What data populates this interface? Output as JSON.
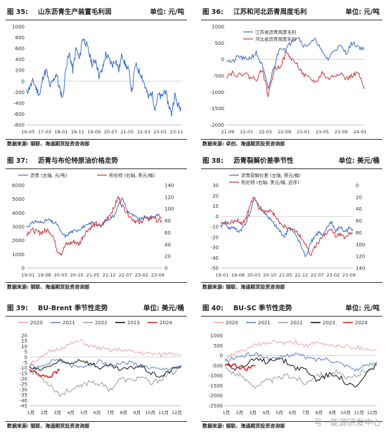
{
  "panels": [
    {
      "id": "p35",
      "fig": "图 35:",
      "title": "山东沥青生产装置毛利润",
      "unit": "单位: 元/吨",
      "source": "数据来源: 钢联、海通期货投资咨询部",
      "chart_data": {
        "type": "line",
        "x_ticks": [
          "16-05",
          "17-03",
          "18-01",
          "18-11",
          "19-09",
          "20-07",
          "21-05",
          "22-03",
          "23-01",
          "23-11"
        ],
        "y_ticks": [
          1000,
          800,
          600,
          400,
          200,
          0,
          -200,
          -400,
          -600,
          -800
        ],
        "ylim": [
          -800,
          1000
        ],
        "legend": [],
        "series": [
          {
            "color": "#3a6fc4",
            "axis": "left",
            "seed": 11,
            "vol": 0.04,
            "values": [
              -200,
              -100,
              0,
              -150,
              -250,
              100,
              200,
              -100,
              0,
              150,
              -150,
              -300,
              300,
              500,
              200,
              600,
              400,
              800,
              700,
              500,
              300,
              400,
              100,
              200,
              500,
              400,
              300,
              400,
              200,
              500,
              300,
              200,
              -200,
              300,
              200,
              100,
              -100,
              -300,
              -200,
              -500,
              -250,
              -300,
              -150,
              -400,
              -600,
              -250,
              -450,
              -500
            ]
          }
        ]
      }
    },
    {
      "id": "p36",
      "fig": "图 36:",
      "title": "江苏和河北沥青周度毛利",
      "unit": "单位: 元/吨",
      "source": "数据来源: 卓创、海通期货投资咨询部",
      "chart_data": {
        "type": "line",
        "x_ticks": [
          "21-09",
          "22-01",
          "22-05",
          "22-09",
          "23-01",
          "23-05",
          "23-09",
          "24-01"
        ],
        "y_ticks": [
          1000,
          500,
          0,
          -500,
          -1000,
          -1500,
          -2000
        ],
        "ylim": [
          -2000,
          1000
        ],
        "legend": [
          "江苏省沥青周度毛利",
          "河北省沥青周度毛利"
        ],
        "series": [
          {
            "name": "江苏省沥青周度毛利",
            "color": "#3a6fc4",
            "axis": "left",
            "seed": 21,
            "vol": 0.025,
            "values": [
              0,
              -100,
              100,
              0,
              50,
              200,
              -200,
              -900,
              -200,
              400,
              300,
              600,
              700,
              400,
              500,
              600,
              200,
              0,
              300,
              400,
              200,
              500,
              400,
              300
            ]
          },
          {
            "name": "河北省沥青周度毛利",
            "color": "#c8383c",
            "axis": "left",
            "seed": 22,
            "vol": 0.025,
            "values": [
              -500,
              -400,
              -500,
              -400,
              -550,
              -600,
              -300,
              -1100,
              -300,
              -200,
              200,
              0,
              -200,
              -500,
              -600,
              -700,
              -400,
              -600,
              -500,
              -400,
              -600,
              -500,
              -400,
              -900
            ]
          }
        ]
      }
    },
    {
      "id": "p37",
      "fig": "图 37:",
      "title": "沥青与布伦特原油价格走势",
      "unit": "",
      "source": "数据来源: 钢联、海通期货投资咨询部",
      "chart_data": {
        "type": "line",
        "x_ticks": [
          "19-01",
          "19-08",
          "20-03",
          "20-10",
          "21-05",
          "21-12",
          "22-07",
          "23-02",
          "23-09"
        ],
        "y_ticks": [
          6000,
          5000,
          4000,
          3000,
          2000,
          1000,
          0
        ],
        "ylim": [
          0,
          6000
        ],
        "y2_ticks": [
          140,
          120,
          100,
          80,
          60,
          40,
          20,
          0
        ],
        "y2lim": [
          0,
          140
        ],
        "legend": [
          "沥青 (左轴, 元/吨)",
          "布伦特 (右轴, 美元/桶)"
        ],
        "series": [
          {
            "name": "沥青 (左轴, 元/吨)",
            "color": "#3a6fc4",
            "axis": "left",
            "seed": 31,
            "vol": 0.02,
            "values": [
              3000,
              3200,
              3400,
              3300,
              3400,
              3500,
              3300,
              3200,
              2500,
              2300,
              2600,
              2700,
              2800,
              3000,
              3100,
              3300,
              3200,
              3000,
              3400,
              3600,
              3800,
              4500,
              5100,
              4200,
              3900,
              3700,
              3500,
              3700,
              3600,
              3700,
              3900,
              3600
            ]
          },
          {
            "name": "布伦特 (右轴, 美元/桶)",
            "color": "#c8383c",
            "axis": "right",
            "seed": 32,
            "vol": 0.03,
            "values": [
              58,
              65,
              62,
              60,
              62,
              65,
              55,
              30,
              25,
              40,
              42,
              45,
              40,
              55,
              65,
              70,
              75,
              70,
              80,
              90,
              100,
              120,
              105,
              95,
              85,
              80,
              75,
              85,
              82,
              88,
              80,
              80
            ]
          }
        ]
      }
    },
    {
      "id": "p38",
      "fig": "图 38:",
      "title": "沥青裂解价差季节性",
      "unit": "单位: 美元/桶",
      "source": "数据来源: 钢联、海通期货投资咨询部",
      "chart_data": {
        "type": "line",
        "x_ticks": [
          "19-01",
          "19-08",
          "20-03",
          "20-10",
          "21-05",
          "21-12",
          "22-07",
          "23-02",
          "23-09"
        ],
        "y_ticks": [
          30,
          20,
          10,
          0,
          -10,
          -20,
          -30,
          -40,
          -50
        ],
        "ylim": [
          -50,
          30
        ],
        "y2_ticks": [
          0,
          20,
          40,
          60,
          80,
          100,
          120,
          140
        ],
        "y2lim": [
          0,
          140
        ],
        "y2_inverted": true,
        "legend": [
          "沥青裂解价差 (左轴, 美元/桶)",
          "布伦特 (右轴, 美元/桶, 逆序)"
        ],
        "series": [
          {
            "name": "沥青裂解价差 (左轴, 美元/桶)",
            "color": "#3a6fc4",
            "axis": "left",
            "seed": 41,
            "vol": 0.025,
            "values": [
              -10,
              -5,
              -12,
              -10,
              -15,
              -12,
              -5,
              5,
              18,
              10,
              5,
              0,
              -5,
              -10,
              -15,
              -20,
              -10,
              -15,
              -20,
              -30,
              -40,
              -25,
              -20,
              -15,
              -20,
              -10,
              -5,
              -15,
              -10,
              -15,
              -12,
              -12
            ]
          },
          {
            "name": "布伦特 (右轴, 美元/桶, 逆序)",
            "color": "#c8383c",
            "axis": "right",
            "seed": 42,
            "vol": 0.025,
            "values": [
              60,
              65,
              62,
              62,
              60,
              65,
              55,
              30,
              20,
              40,
              42,
              45,
              45,
              55,
              65,
              70,
              75,
              72,
              80,
              90,
              100,
              120,
              105,
              95,
              85,
              80,
              75,
              85,
              82,
              90,
              82,
              80
            ]
          }
        ]
      }
    },
    {
      "id": "p39",
      "fig": "图 39:",
      "title": "BU-Brent 季节性走势",
      "unit": "单位: 美元/桶",
      "source": "数据来源: 钢联、海通期货投资咨询部",
      "chart_data": {
        "type": "line",
        "x_ticks": [
          "1月",
          "2月",
          "3月",
          "4月",
          "5月",
          "6月",
          "7月",
          "8月",
          "9月",
          "10月",
          "11月",
          "12月"
        ],
        "y_ticks": [
          20,
          15,
          10,
          5,
          0,
          -5,
          -10,
          -15,
          -20,
          -25,
          -30,
          -35,
          -40,
          -45
        ],
        "ylim": [
          -45,
          20
        ],
        "legend": [
          "2020",
          "2021",
          "2022",
          "2023",
          "2024"
        ],
        "series": [
          {
            "name": "2020",
            "color": "#e8a7a8",
            "axis": "left",
            "seed": 51,
            "vol": 0.03,
            "values": [
              -5,
              -2,
              5,
              8,
              12,
              15,
              10,
              8,
              6,
              7,
              5,
              4,
              3,
              2,
              4,
              2
            ]
          },
          {
            "name": "2021",
            "color": "#5a84c9",
            "axis": "left",
            "seed": 52,
            "vol": 0.03,
            "values": [
              -8,
              -10,
              -5,
              -2,
              -8,
              -10,
              -6,
              -4,
              -8,
              -6,
              -5,
              -8,
              -10,
              -12,
              -10,
              -8
            ]
          },
          {
            "name": "2022",
            "color": "#9e9e9e",
            "axis": "left",
            "seed": 53,
            "vol": 0.04,
            "values": [
              -12,
              -18,
              -25,
              -35,
              -30,
              -28,
              -22,
              -25,
              -30,
              -20,
              -22,
              -18,
              -25,
              -20,
              -15,
              -10
            ]
          },
          {
            "name": "2023",
            "color": "#111111",
            "axis": "left",
            "seed": 54,
            "vol": 0.03,
            "values": [
              -10,
              -12,
              -8,
              -4,
              -6,
              -2,
              -6,
              -10,
              -8,
              -12,
              -10,
              -8,
              -15,
              -18,
              -12,
              -8
            ]
          },
          {
            "name": "2024",
            "color": "#e02020",
            "axis": "left",
            "seed": 55,
            "vol": 0.03,
            "values": [
              -12,
              -16,
              -18,
              -12
            ]
          }
        ]
      }
    },
    {
      "id": "p40",
      "fig": "图 40:",
      "title": "BU-SC 季节性走势",
      "unit": "单位: 元/吨",
      "source": "数据来源: 钢联、海通期货投资咨询部",
      "chart_data": {
        "type": "line",
        "x_ticks": [
          "1月",
          "2月",
          "3月",
          "4月",
          "5月",
          "6月",
          "7月",
          "8月",
          "9月",
          "10月",
          "11月",
          "12月"
        ],
        "y_ticks": [
          1000,
          500,
          0,
          -500,
          -1000,
          -1500,
          -2000,
          -2500
        ],
        "ylim": [
          -2500,
          1000
        ],
        "legend": [
          "2020",
          "2021",
          "2022",
          "2023",
          "2024"
        ],
        "series": [
          {
            "name": "2020",
            "color": "#e8a7a8",
            "axis": "left",
            "seed": 61,
            "vol": 0.03,
            "values": [
              -200,
              100,
              300,
              500,
              600,
              700,
              600,
              650,
              500,
              600,
              550,
              500,
              450,
              400,
              350,
              300
            ]
          },
          {
            "name": "2021",
            "color": "#5a84c9",
            "axis": "left",
            "seed": 62,
            "vol": 0.03,
            "values": [
              -300,
              -100,
              0,
              100,
              -100,
              -200,
              0,
              100,
              -100,
              -200,
              -150,
              -300,
              -500,
              -700,
              -500,
              -300
            ]
          },
          {
            "name": "2022",
            "color": "#9e9e9e",
            "axis": "left",
            "seed": 63,
            "vol": 0.04,
            "values": [
              -600,
              -900,
              -1200,
              -1500,
              -1300,
              -1200,
              -1000,
              -1100,
              -1400,
              -900,
              -1000,
              -800,
              -1200,
              -1000,
              -700,
              -500
            ]
          },
          {
            "name": "2023",
            "color": "#111111",
            "axis": "left",
            "seed": 64,
            "vol": 0.04,
            "values": [
              -400,
              -600,
              -500,
              -200,
              -300,
              -100,
              -300,
              -600,
              -700,
              -1200,
              -1000,
              -900,
              -1400,
              -1600,
              -900,
              -400
            ]
          },
          {
            "name": "2024",
            "color": "#e02020",
            "axis": "left",
            "seed": 65,
            "vol": 0.03,
            "values": [
              -400,
              -500,
              -700,
              -500
            ]
          }
        ]
      }
    }
  ],
  "watermark": "号 · 能源研发中心"
}
